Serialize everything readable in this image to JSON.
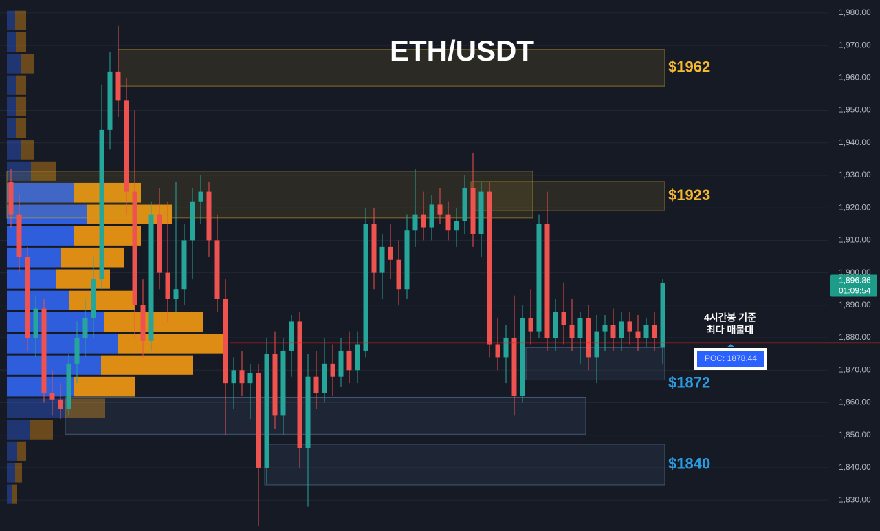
{
  "chart_data": {
    "type": "candlestick",
    "title": "ETH/USDT",
    "ylim": [
      1820.5,
      1984
    ],
    "yticks": [
      {
        "value": 1830,
        "label": "1,830.00"
      },
      {
        "value": 1840,
        "label": "1,840.00"
      },
      {
        "value": 1850,
        "label": "1,850.00"
      },
      {
        "value": 1860,
        "label": "1,860.00"
      },
      {
        "value": 1870,
        "label": "1,870.00"
      },
      {
        "value": 1880,
        "label": "1,880.00"
      },
      {
        "value": 1890,
        "label": "1,890.00"
      },
      {
        "value": 1900,
        "label": "1,900.00"
      },
      {
        "value": 1910,
        "label": "1,910.00"
      },
      {
        "value": 1920,
        "label": "1,920.00"
      },
      {
        "value": 1930,
        "label": "1,930.00"
      },
      {
        "value": 1940,
        "label": "1,940.00"
      },
      {
        "value": 1950,
        "label": "1,950.00"
      },
      {
        "value": 1960,
        "label": "1,960.00"
      },
      {
        "value": 1970,
        "label": "1,970.00"
      },
      {
        "value": 1980,
        "label": "1,980.00"
      }
    ],
    "grid": true,
    "up_color": "#26a69a",
    "down_color": "#ef5350",
    "open": [
      1928,
      1918,
      1905,
      1880,
      1889,
      1863,
      1861,
      1858,
      1872,
      1880,
      1886,
      1898,
      1944,
      1962,
      1953,
      1925,
      1890,
      1879,
      1918,
      1900,
      1892,
      1895,
      1910,
      1922,
      1925,
      1910,
      1892,
      1866,
      1870,
      1866,
      1869,
      1840,
      1875,
      1856,
      1876,
      1885,
      1846,
      1868,
      1863,
      1872,
      1868,
      1876,
      1870,
      1876,
      1915,
      1900,
      1908,
      1904,
      1895,
      1913,
      1918,
      1914,
      1921,
      1918,
      1913,
      1916,
      1926,
      1912,
      1925,
      1878,
      1874,
      1880,
      1862,
      1886,
      1882,
      1915,
      1880,
      1888,
      1884,
      1880,
      1886,
      1874,
      1882,
      1884,
      1880,
      1885,
      1882,
      1880,
      1884,
      1877
    ],
    "high": [
      1932,
      1924,
      1908,
      1893,
      1892,
      1870,
      1866,
      1875,
      1885,
      1892,
      1905,
      1958,
      1968,
      1976,
      1960,
      1950,
      1898,
      1922,
      1926,
      1922,
      1928,
      1915,
      1926,
      1930,
      1928,
      1918,
      1898,
      1874,
      1876,
      1872,
      1872,
      1880,
      1882,
      1880,
      1887,
      1888,
      1875,
      1876,
      1880,
      1878,
      1880,
      1882,
      1882,
      1920,
      1920,
      1912,
      1915,
      1910,
      1918,
      1932,
      1925,
      1924,
      1926,
      1922,
      1920,
      1930,
      1937,
      1928,
      1928,
      1886,
      1884,
      1893,
      1890,
      1895,
      1918,
      1925,
      1892,
      1897,
      1892,
      1888,
      1890,
      1887,
      1887,
      1889,
      1888,
      1888,
      1887,
      1886,
      1888,
      1898
    ],
    "low": [
      1914,
      1900,
      1876,
      1874,
      1860,
      1856,
      1855,
      1856,
      1866,
      1874,
      1880,
      1895,
      1938,
      1948,
      1918,
      1880,
      1874,
      1876,
      1895,
      1885,
      1888,
      1890,
      1898,
      1915,
      1905,
      1888,
      1850,
      1858,
      1862,
      1855,
      1822,
      1835,
      1852,
      1850,
      1868,
      1840,
      1828,
      1858,
      1860,
      1862,
      1865,
      1866,
      1866,
      1874,
      1895,
      1892,
      1898,
      1890,
      1892,
      1908,
      1910,
      1910,
      1915,
      1910,
      1908,
      1912,
      1908,
      1905,
      1874,
      1870,
      1866,
      1856,
      1860,
      1878,
      1880,
      1876,
      1876,
      1878,
      1876,
      1872,
      1870,
      1866,
      1876,
      1876,
      1876,
      1878,
      1876,
      1877,
      1876,
      1872
    ],
    "close": [
      1918,
      1905,
      1880,
      1889,
      1863,
      1861,
      1858,
      1872,
      1880,
      1886,
      1898,
      1944,
      1962,
      1953,
      1925,
      1890,
      1879,
      1918,
      1900,
      1892,
      1895,
      1910,
      1922,
      1925,
      1910,
      1892,
      1866,
      1870,
      1866,
      1869,
      1840,
      1875,
      1856,
      1876,
      1885,
      1846,
      1868,
      1863,
      1872,
      1868,
      1876,
      1870,
      1878,
      1915,
      1900,
      1908,
      1904,
      1895,
      1913,
      1918,
      1914,
      1921,
      1918,
      1913,
      1916,
      1926,
      1912,
      1925,
      1878,
      1874,
      1880,
      1862,
      1886,
      1882,
      1915,
      1880,
      1888,
      1884,
      1880,
      1886,
      1874,
      1882,
      1884,
      1880,
      1885,
      1882,
      1880,
      1884,
      1880,
      1896.86
    ],
    "profile": {
      "bins": [
        1981.0,
        1974.4,
        1967.7,
        1961.1,
        1954.5,
        1947.9,
        1941.2,
        1934.6,
        1928.0,
        1921.3,
        1914.7,
        1908.1,
        1901.4,
        1894.8,
        1888.2,
        1881.5,
        1874.9,
        1868.3,
        1861.6,
        1855.0,
        1848.4,
        1841.8,
        1835.1,
        1828.5
      ],
      "buy": [
        12,
        14,
        20,
        14,
        14,
        14,
        20,
        35,
        98,
        117,
        98,
        79,
        72,
        91,
        142,
        162,
        137,
        98,
        85,
        34,
        15,
        12,
        7
      ],
      "sell": [
        16,
        14,
        20,
        14,
        14,
        14,
        20,
        37,
        97,
        123,
        97,
        91,
        78,
        96,
        143,
        158,
        134,
        89,
        58,
        33,
        13,
        10,
        8
      ],
      "xlim": [
        0,
        1270
      ],
      "buy_color": "#2f62e6",
      "sell_color": "#e89412",
      "value_area": {
        "high": 1928.0,
        "low": 1861.6
      }
    },
    "zones": [
      {
        "low": 1957.5,
        "high": 1968.8,
        "color": "#c9a227",
        "label": "$1962",
        "label_color": "#f5b82e"
      },
      {
        "low": 1916.9,
        "high": 1931.3,
        "color": "#c9a227"
      },
      {
        "low": 1919.2,
        "high": 1928.1,
        "color": "#c9a227",
        "label": "$1923",
        "label_color": "#f5b82e"
      },
      {
        "low": 1867.0,
        "high": 1877.0,
        "color": "#5b7fa6",
        "label": "$1872",
        "label_color": "#2b9be0"
      },
      {
        "low": 1850.3,
        "high": 1861.7,
        "color": "#5b7fa6"
      },
      {
        "low": 1834.7,
        "high": 1847.2,
        "color": "#5b7fa6",
        "label": "$1840",
        "label_color": "#2b9be0"
      }
    ],
    "poc": 1878.44,
    "poc_label": "POC: 1878.44",
    "poc_color": "#e52222",
    "annotation": [
      "4시간봉 기준",
      "최다 매물대"
    ],
    "last_price": 1896.86,
    "last_price_label": "1,896.86",
    "countdown": "01:09:54"
  }
}
